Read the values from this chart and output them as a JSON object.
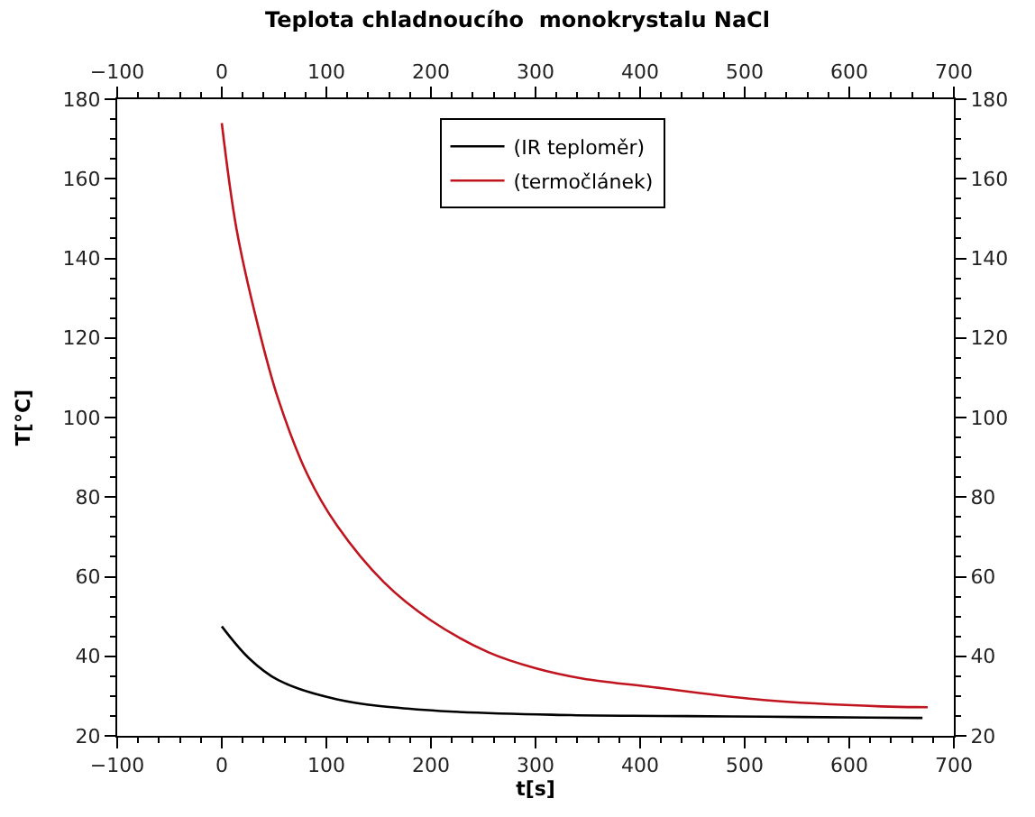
{
  "chart_data": {
    "type": "line",
    "title": "Teplota chladnoucího  monokrystalu NaCl",
    "xlabel": "t[s]",
    "ylabel": "T[°C]",
    "xlim": [
      -100,
      700
    ],
    "xticks": [
      -100,
      0,
      100,
      200,
      300,
      400,
      500,
      600,
      700
    ],
    "x2lim": [
      -100,
      700
    ],
    "x2ticks": [
      -100,
      0,
      100,
      200,
      300,
      400,
      500,
      600,
      700
    ],
    "ylim": [
      20,
      180
    ],
    "yticks": [
      20,
      40,
      60,
      80,
      100,
      120,
      140,
      160,
      180
    ],
    "y2lim": [
      20,
      180
    ],
    "y2ticks": [
      20,
      40,
      60,
      80,
      100,
      120,
      140,
      160,
      180
    ],
    "legend": "top",
    "marker": "none",
    "line_style": "solid",
    "series": [
      {
        "name": "(IR teploměr)",
        "color": "#000000",
        "x": [
          0,
          26,
          54,
          110,
          194,
          334,
          420,
          520,
          620,
          670
        ],
        "values": [
          47.5,
          39.5,
          34,
          29.2,
          26.5,
          25.2,
          25,
          24.8,
          24.6,
          24.5
        ]
      },
      {
        "name": "(termočlánek)",
        "color": "#c0141e",
        "x": [
          0,
          14,
          34,
          54,
          82,
          110,
          155,
          200,
          255,
          300,
          345,
          407,
          518,
          631,
          675
        ],
        "values": [
          174,
          147.5,
          123.7,
          104.6,
          85.6,
          72.9,
          58.6,
          49,
          41,
          37,
          34.4,
          32.4,
          29,
          27.4,
          27.2
        ]
      }
    ]
  }
}
